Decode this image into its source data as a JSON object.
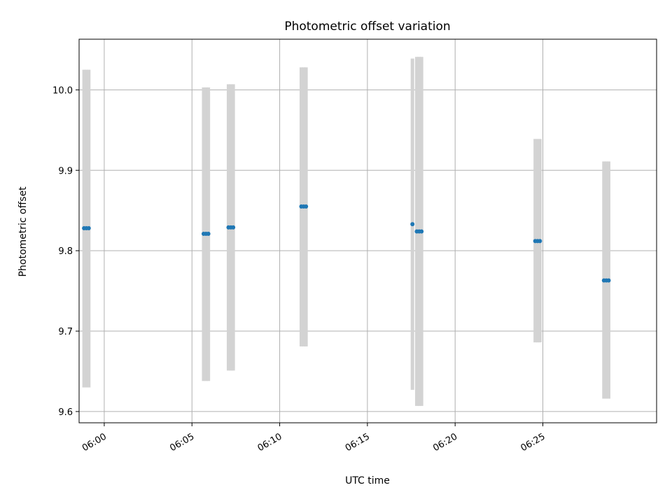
{
  "chart_data": {
    "type": "scatter",
    "title": "Photometric offset variation",
    "xlabel": "UTC time",
    "ylabel": "Photometric offset",
    "x_axis_type": "time",
    "xlim": [
      "05:58:34",
      "06:31:29"
    ],
    "ylim": [
      9.586,
      10.063
    ],
    "grid": true,
    "x_ticks": [
      "06:00",
      "06:05",
      "06:10",
      "06:15",
      "06:20",
      "06:25"
    ],
    "y_ticks": [
      9.6,
      9.7,
      9.8,
      9.9,
      10.0
    ],
    "colors": {
      "points": "#1f77b4",
      "errorbars": "#d3d3d3",
      "grid": "#b0b0b0"
    },
    "series": [
      {
        "points": [
          {
            "x": "05:58:51",
            "y": 9.828,
            "lo": 9.63,
            "hi": 10.025
          },
          {
            "x": "05:58:59",
            "y": 9.828,
            "lo": 9.63,
            "hi": 10.025
          },
          {
            "x": "05:59:07",
            "y": 9.828,
            "lo": 9.63,
            "hi": 10.025
          },
          {
            "x": "06:05:40",
            "y": 9.821,
            "lo": 9.638,
            "hi": 10.003
          },
          {
            "x": "06:05:48",
            "y": 9.821,
            "lo": 9.638,
            "hi": 10.003
          },
          {
            "x": "06:05:56",
            "y": 9.821,
            "lo": 9.638,
            "hi": 10.003
          },
          {
            "x": "06:07:05",
            "y": 9.829,
            "lo": 9.651,
            "hi": 10.007
          },
          {
            "x": "06:07:13",
            "y": 9.829,
            "lo": 9.651,
            "hi": 10.007
          },
          {
            "x": "06:07:21",
            "y": 9.829,
            "lo": 9.651,
            "hi": 10.007
          },
          {
            "x": "06:11:14",
            "y": 9.855,
            "lo": 9.681,
            "hi": 10.028
          },
          {
            "x": "06:11:22",
            "y": 9.855,
            "lo": 9.681,
            "hi": 10.028
          },
          {
            "x": "06:11:30",
            "y": 9.855,
            "lo": 9.681,
            "hi": 10.028
          },
          {
            "x": "06:17:34",
            "y": 9.833,
            "lo": 9.627,
            "hi": 10.039
          },
          {
            "x": "06:17:49",
            "y": 9.824,
            "lo": 9.607,
            "hi": 10.041
          },
          {
            "x": "06:17:57",
            "y": 9.824,
            "lo": 9.607,
            "hi": 10.041
          },
          {
            "x": "06:18:05",
            "y": 9.824,
            "lo": 9.607,
            "hi": 10.041
          },
          {
            "x": "06:24:34",
            "y": 9.812,
            "lo": 9.686,
            "hi": 9.939
          },
          {
            "x": "06:24:42",
            "y": 9.812,
            "lo": 9.686,
            "hi": 9.939
          },
          {
            "x": "06:24:50",
            "y": 9.812,
            "lo": 9.686,
            "hi": 9.939
          },
          {
            "x": "06:28:29",
            "y": 9.763,
            "lo": 9.616,
            "hi": 9.911
          },
          {
            "x": "06:28:37",
            "y": 9.763,
            "lo": 9.616,
            "hi": 9.911
          },
          {
            "x": "06:28:45",
            "y": 9.763,
            "lo": 9.616,
            "hi": 9.911
          }
        ]
      }
    ]
  }
}
